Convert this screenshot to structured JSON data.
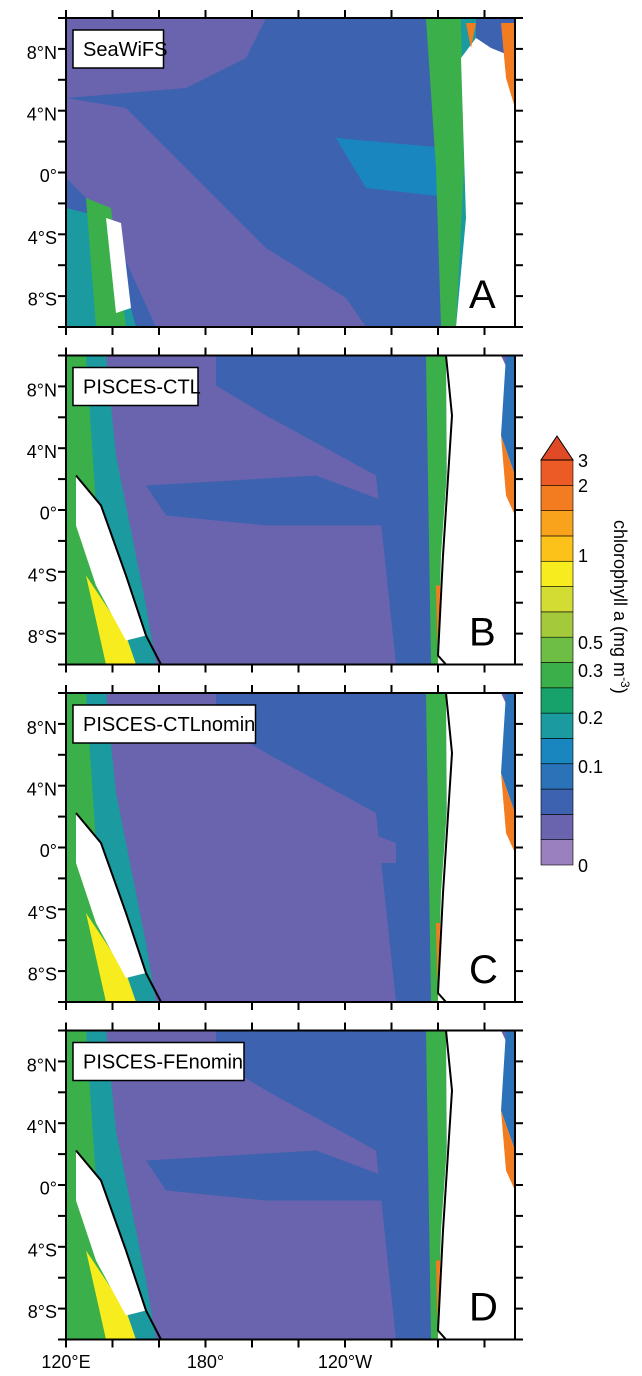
{
  "panels": [
    {
      "label": "SeaWiFS",
      "letter": "A"
    },
    {
      "label": "PISCES-CTL",
      "letter": "B"
    },
    {
      "label": "PISCES-CTLnomin",
      "letter": "C"
    },
    {
      "label": "PISCES-FEnomin",
      "letter": "D"
    }
  ],
  "lat_labels": [
    "8°N",
    "4°N",
    "0°",
    "4°S",
    "8°S"
  ],
  "lon_labels": [
    "120°E",
    "180°",
    "120°W"
  ],
  "colorbar": {
    "ticks": [
      "3",
      "2",
      "1",
      "0.5",
      "0.3",
      "0.2",
      "0.1",
      "0"
    ],
    "title": "chlorophyll a (mg m",
    "title_exponent": "-3",
    "title_end": ")",
    "colors": [
      "#9a80be",
      "#6a63ad",
      "#3d63b0",
      "#2b72b8",
      "#1a86bf",
      "#1b9aa0",
      "#16a26a",
      "#3bb04a",
      "#6ebd45",
      "#a4c93b",
      "#d3dc32",
      "#f7ec1e",
      "#fdc21a",
      "#f9a21b",
      "#f47c20",
      "#ec5a25"
    ]
  }
}
